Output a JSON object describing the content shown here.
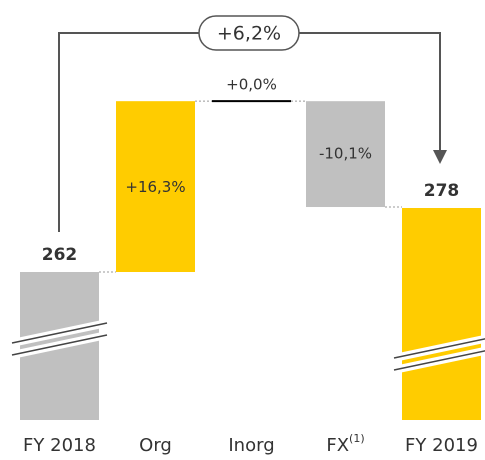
{
  "chart_data": {
    "type": "waterfall",
    "categories": [
      "FY 2018",
      "Org",
      "Inorg",
      "FX",
      "FY 2019"
    ],
    "category_superscript": [
      null,
      null,
      null,
      "(1)",
      null
    ],
    "kinds": [
      "total",
      "percent",
      "percent",
      "percent",
      "total"
    ],
    "values": [
      262,
      16.3,
      0.0,
      -10.1,
      278
    ],
    "value_labels": [
      "262",
      "+16,3%",
      "+0,0%",
      "-10,1%",
      "278"
    ],
    "colors": [
      "#c0c0c0",
      "#ffcc00",
      "#000000",
      "#c0c0c0",
      "#ffcc00"
    ],
    "annotation": "+6,2%"
  }
}
